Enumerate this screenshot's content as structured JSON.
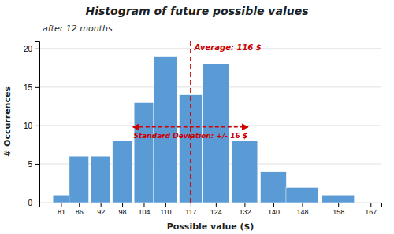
{
  "chart_data": {
    "type": "bar",
    "title": "Histogram of future possible values",
    "subtitle": "after 12 months",
    "xlabel": "Possible value ($)",
    "ylabel": "# Occurrences",
    "x": [
      81,
      86,
      92,
      98,
      104,
      110,
      117,
      124,
      132,
      140,
      148,
      158
    ],
    "values": [
      1,
      6,
      6,
      8,
      13,
      19,
      14,
      18,
      8,
      4,
      2,
      1
    ],
    "color": "#5B9BD5",
    "xlim": [
      75,
      170
    ],
    "xticks": [
      81,
      86,
      92,
      98,
      104,
      110,
      117,
      124,
      132,
      140,
      148,
      158,
      167
    ],
    "ylim": [
      0,
      21
    ],
    "yticks": [
      0,
      5,
      10,
      15,
      20
    ],
    "grid": true,
    "annotations": [
      {
        "type": "vline",
        "x": 117,
        "label": "Average: 116 $",
        "color": "#CC0000"
      },
      {
        "type": "arrow",
        "x": [
          101,
          133
        ],
        "y": 9.8,
        "label": "Standard Deviation: +/- 16 $",
        "color": "#CC0000"
      }
    ]
  }
}
